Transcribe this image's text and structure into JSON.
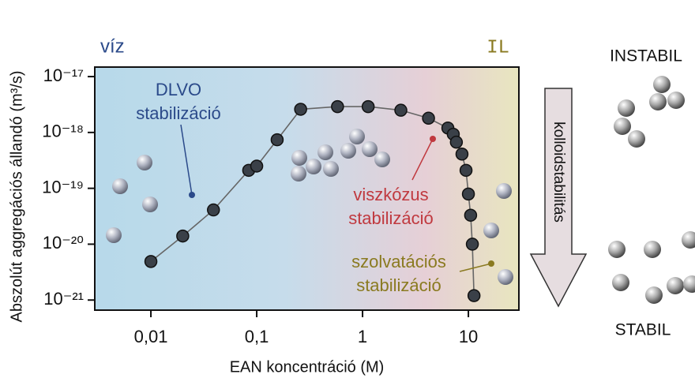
{
  "chart_data": {
    "type": "scatter",
    "x_label": "EAN koncentráció (M)",
    "y_label": "Abszolút aggregációs állandó (m³/s)",
    "log_x": true,
    "log_y": true,
    "xlim": [
      0.00295,
      30
    ],
    "ylim": [
      6.6e-22,
      1.48e-17
    ],
    "xticks": [
      {
        "value": 0.01,
        "label": "0,01"
      },
      {
        "value": 0.1,
        "label": "0,1"
      },
      1,
      10
    ],
    "yticks": [
      {
        "value": 1e-21,
        "label": "10⁻²¹"
      },
      {
        "value": 1e-20,
        "label": "10⁻²⁰"
      },
      {
        "value": 1e-19,
        "label": "10⁻¹⁹"
      },
      {
        "value": 1e-18,
        "label": "10⁻¹⁸"
      },
      {
        "value": 1e-17,
        "label": "10⁻¹⁷"
      }
    ],
    "series": [
      {
        "color": "#3a4048",
        "line_color": "#666666",
        "x": [
          0.01,
          0.02,
          0.039,
          0.084,
          0.1,
          0.156,
          0.26,
          0.58,
          1.13,
          2.3,
          4.2,
          6.4,
          7.2,
          7.7,
          8.7,
          9.5,
          10,
          10.5,
          10.9,
          11.3
        ],
        "values": [
          4.9e-21,
          1.4e-20,
          4.1e-20,
          2.1e-19,
          2.5e-19,
          7.4e-19,
          2.6e-18,
          2.9e-18,
          2.9e-18,
          2.5e-18,
          1.8e-18,
          1.2e-18,
          9.3e-19,
          6.7e-19,
          4.1e-19,
          2.1e-19,
          7.9e-20,
          3.3e-20,
          1e-20,
          1.2e-21
        ]
      }
    ],
    "annotations": [
      {
        "lines": [
          "víz"
        ],
        "color": "#2b4a8a"
      },
      {
        "lines": [
          "IL"
        ],
        "color": "#8a7a20"
      },
      {
        "lines": [
          "DLVO",
          "stabilizáció"
        ],
        "color": "#2b4a8a"
      },
      {
        "lines": [
          "viszkózus",
          "stabilizáció"
        ],
        "color": "#c0393f"
      },
      {
        "lines": [
          "szolvatációs",
          "stabilizáció"
        ],
        "color": "#8a7a20"
      },
      {
        "lines": [
          "INSTABIL"
        ],
        "color": "#111111"
      },
      {
        "lines": [
          "STABIL"
        ],
        "color": "#111111"
      },
      {
        "lines": [
          "kolloidstabilitás"
        ],
        "color": "#111111"
      }
    ]
  }
}
